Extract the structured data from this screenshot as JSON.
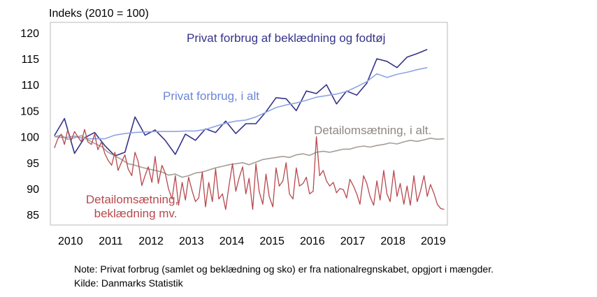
{
  "chart_data": {
    "type": "line",
    "ylabel": "Indeks (2010 = 100)",
    "ylim": [
      83,
      122
    ],
    "yticks": [
      85,
      90,
      95,
      100,
      105,
      110,
      115,
      120
    ],
    "xlim": [
      2009.9,
      2019.75
    ],
    "xticks": [
      "2010",
      "2011",
      "2012",
      "2013",
      "2014",
      "2015",
      "2016",
      "2017",
      "2018",
      "2019"
    ],
    "grid": false,
    "series": [
      {
        "name": "Privat forbrug af beklædning og fodtøj",
        "color": "#35338a",
        "x": [
          2010.0,
          2010.25,
          2010.5,
          2010.75,
          2011.0,
          2011.25,
          2011.5,
          2011.75,
          2012.0,
          2012.25,
          2012.5,
          2012.75,
          2013.0,
          2013.25,
          2013.5,
          2013.75,
          2014.0,
          2014.25,
          2014.5,
          2014.75,
          2015.0,
          2015.25,
          2015.5,
          2015.75,
          2016.0,
          2016.25,
          2016.5,
          2016.75,
          2017.0,
          2017.25,
          2017.5,
          2017.75,
          2018.0,
          2018.25,
          2018.5,
          2018.75,
          2019.0,
          2019.25
        ],
        "y": [
          100.2,
          103.5,
          96.8,
          99.8,
          100.8,
          98.3,
          96.3,
          97.0,
          103.8,
          100.3,
          101.3,
          99.3,
          96.6,
          100.5,
          99.3,
          101.5,
          100.8,
          103.0,
          100.6,
          102.5,
          102.5,
          104.8,
          107.5,
          107.3,
          105.0,
          108.8,
          108.3,
          110.0,
          106.3,
          108.8,
          108.0,
          110.3,
          115.0,
          114.5,
          113.3,
          115.3,
          116.0,
          116.8
        ]
      },
      {
        "name": "Privat forbrug, i alt",
        "color": "#8ea5e4",
        "x": [
          2010.0,
          2010.25,
          2010.5,
          2010.75,
          2011.0,
          2011.25,
          2011.5,
          2011.75,
          2012.0,
          2012.25,
          2012.5,
          2012.75,
          2013.0,
          2013.25,
          2013.5,
          2013.75,
          2014.0,
          2014.25,
          2014.5,
          2014.75,
          2015.0,
          2015.25,
          2015.5,
          2015.75,
          2016.0,
          2016.25,
          2016.5,
          2016.75,
          2017.0,
          2017.25,
          2017.5,
          2017.75,
          2018.0,
          2018.25,
          2018.5,
          2018.75,
          2019.0,
          2019.25
        ],
        "y": [
          100.0,
          99.8,
          100.1,
          99.6,
          99.6,
          99.6,
          100.3,
          100.6,
          100.8,
          100.9,
          101.0,
          101.0,
          101.0,
          101.1,
          101.1,
          101.4,
          102.0,
          102.6,
          103.0,
          103.2,
          103.8,
          104.7,
          105.6,
          106.1,
          106.5,
          107.0,
          107.6,
          107.9,
          108.2,
          108.7,
          109.6,
          110.6,
          112.1,
          111.4,
          112.0,
          112.4,
          112.9,
          113.3
        ]
      },
      {
        "name": "Detailomsætning, i alt.",
        "color": "#a59e96",
        "x": [
          2010.0,
          2010.17,
          2010.33,
          2010.5,
          2010.67,
          2010.83,
          2011.0,
          2011.17,
          2011.33,
          2011.5,
          2011.67,
          2011.83,
          2012.0,
          2012.17,
          2012.33,
          2012.5,
          2012.67,
          2012.83,
          2013.0,
          2013.17,
          2013.33,
          2013.5,
          2013.67,
          2013.83,
          2014.0,
          2014.17,
          2014.33,
          2014.5,
          2014.67,
          2014.83,
          2015.0,
          2015.17,
          2015.33,
          2015.5,
          2015.67,
          2015.83,
          2016.0,
          2016.17,
          2016.33,
          2016.5,
          2016.67,
          2016.83,
          2017.0,
          2017.17,
          2017.33,
          2017.5,
          2017.67,
          2017.83,
          2018.0,
          2018.17,
          2018.33,
          2018.5,
          2018.67,
          2018.83,
          2019.0,
          2019.17,
          2019.33,
          2019.5,
          2019.67
        ],
        "y": [
          100.0,
          100.3,
          99.5,
          99.8,
          100.2,
          99.4,
          98.7,
          98.1,
          97.0,
          96.3,
          95.6,
          94.8,
          94.5,
          94.1,
          93.8,
          93.5,
          93.2,
          92.6,
          92.8,
          92.2,
          92.5,
          93.0,
          93.2,
          93.6,
          94.0,
          94.3,
          94.6,
          94.8,
          95.0,
          94.6,
          95.1,
          95.6,
          95.8,
          96.0,
          96.2,
          96.0,
          96.5,
          96.7,
          96.4,
          97.0,
          97.2,
          97.0,
          97.3,
          97.6,
          97.6,
          98.0,
          98.2,
          98.0,
          98.3,
          98.5,
          98.8,
          98.6,
          99.0,
          99.3,
          99.1,
          99.4,
          99.7,
          99.5,
          99.6
        ]
      },
      {
        "name": "Detailomsætning, beklædning mv.",
        "color": "#b7484d",
        "x": [
          2010.0,
          2010.08,
          2010.17,
          2010.25,
          2010.33,
          2010.42,
          2010.5,
          2010.58,
          2010.67,
          2010.75,
          2010.83,
          2010.92,
          2011.0,
          2011.08,
          2011.17,
          2011.25,
          2011.33,
          2011.42,
          2011.5,
          2011.58,
          2011.67,
          2011.75,
          2011.83,
          2011.92,
          2012.0,
          2012.08,
          2012.17,
          2012.25,
          2012.33,
          2012.42,
          2012.5,
          2012.58,
          2012.67,
          2012.75,
          2012.83,
          2012.92,
          2013.0,
          2013.08,
          2013.17,
          2013.25,
          2013.33,
          2013.42,
          2013.5,
          2013.58,
          2013.67,
          2013.75,
          2013.83,
          2013.92,
          2014.0,
          2014.08,
          2014.17,
          2014.25,
          2014.33,
          2014.42,
          2014.5,
          2014.58,
          2014.67,
          2014.75,
          2014.83,
          2014.92,
          2015.0,
          2015.08,
          2015.17,
          2015.25,
          2015.33,
          2015.42,
          2015.5,
          2015.58,
          2015.67,
          2015.75,
          2015.83,
          2015.92,
          2016.0,
          2016.08,
          2016.17,
          2016.25,
          2016.33,
          2016.42,
          2016.5,
          2016.58,
          2016.67,
          2016.75,
          2016.83,
          2016.92,
          2017.0,
          2017.08,
          2017.17,
          2017.25,
          2017.33,
          2017.42,
          2017.5,
          2017.58,
          2017.67,
          2017.75,
          2017.83,
          2017.92,
          2018.0,
          2018.08,
          2018.17,
          2018.25,
          2018.33,
          2018.42,
          2018.5,
          2018.58,
          2018.67,
          2018.75,
          2018.83,
          2018.92,
          2019.0,
          2019.08,
          2019.17,
          2019.25,
          2019.33,
          2019.42,
          2019.5,
          2019.58,
          2019.67
        ],
        "y": [
          97.8,
          99.5,
          100.5,
          98.5,
          101.3,
          99.3,
          101.0,
          100.0,
          99.0,
          101.4,
          99.0,
          98.5,
          100.5,
          97.5,
          99.0,
          96.8,
          95.5,
          94.5,
          97.0,
          93.5,
          95.2,
          96.5,
          93.8,
          92.5,
          97.0,
          95.2,
          90.6,
          92.5,
          94.2,
          91.2,
          96.2,
          91.0,
          94.5,
          93.0,
          90.0,
          88.0,
          92.5,
          86.8,
          91.2,
          87.8,
          92.2,
          89.5,
          87.5,
          88.2,
          93.2,
          86.5,
          91.2,
          87.5,
          93.8,
          88.0,
          89.0,
          86.0,
          90.5,
          94.8,
          89.5,
          92.0,
          94.2,
          89.0,
          92.0,
          86.0,
          94.8,
          89.5,
          87.0,
          92.8,
          88.5,
          86.5,
          94.0,
          90.5,
          91.5,
          95.0,
          89.0,
          88.0,
          94.0,
          90.5,
          91.0,
          92.2,
          89.0,
          89.5,
          100.0,
          92.5,
          93.5,
          91.5,
          90.5,
          91.2,
          89.2,
          90.0,
          89.8,
          88.2,
          91.8,
          90.5,
          89.0,
          87.0,
          92.5,
          91.0,
          88.5,
          86.8,
          91.5,
          87.8,
          93.5,
          89.0,
          87.5,
          93.5,
          88.5,
          91.0,
          87.0,
          90.5,
          86.8,
          92.5,
          87.5,
          89.5,
          92.5,
          88.5,
          90.8,
          89.0,
          87.0,
          86.2,
          86.0
        ]
      }
    ]
  },
  "series_labels": {
    "clothing_consumption": "Privat forbrug af beklædning og fodtøj",
    "total_consumption": "Privat forbrug, i alt",
    "retail_total": "Detailomsætning, i alt.",
    "retail_clothing_line1": "Detailomsætning,",
    "retail_clothing_line2": "beklædning mv."
  },
  "notes": {
    "note": "Note: Privat forbrug (samlet og beklædning og sko) er fra nationalregnskabet, opgjort i mængder.",
    "source": "Kilde: Danmarks Statistik"
  }
}
